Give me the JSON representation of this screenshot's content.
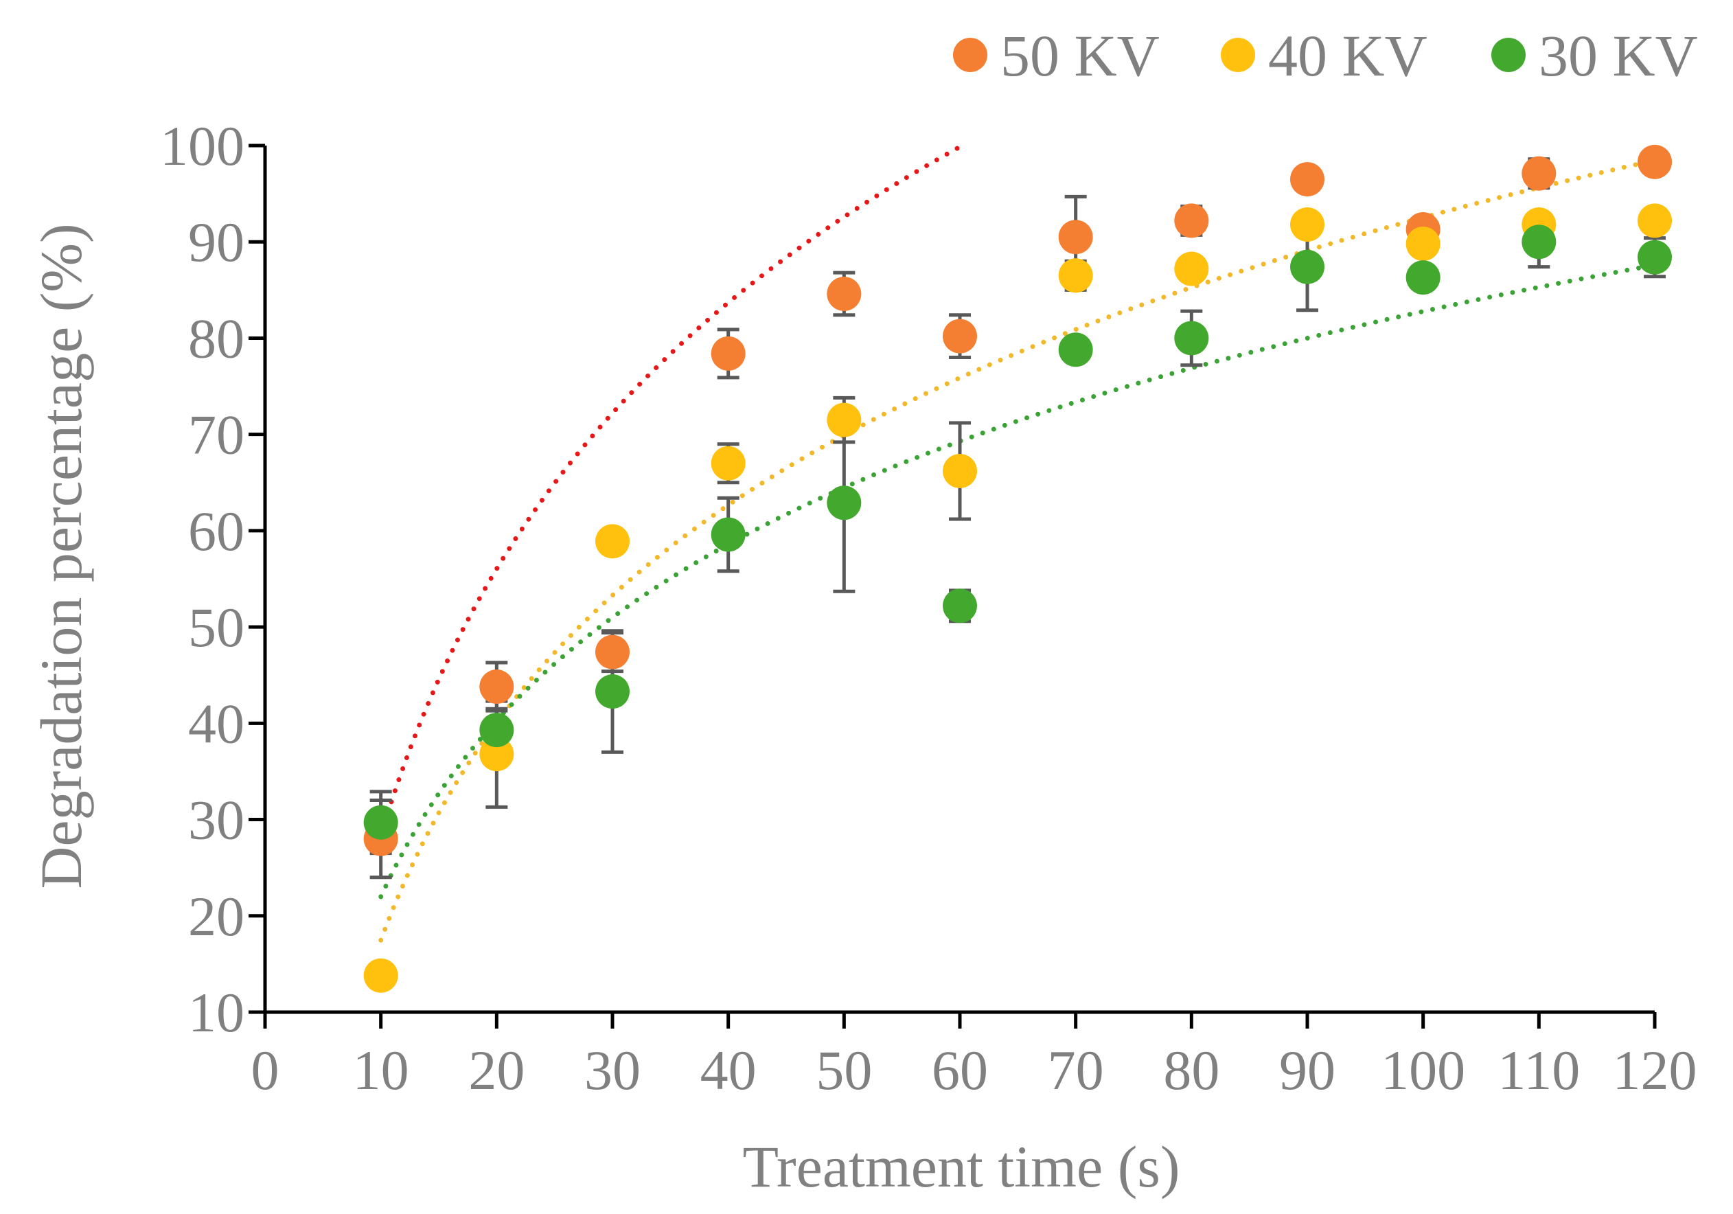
{
  "chart_data": {
    "type": "scatter",
    "title": "",
    "xlabel": "Treatment time (s)",
    "ylabel": "Degradation percentage (%)",
    "xlim": [
      0,
      120
    ],
    "ylim": [
      10,
      100
    ],
    "xticks": [
      0,
      10,
      20,
      30,
      40,
      50,
      60,
      70,
      80,
      90,
      100,
      110,
      120
    ],
    "yticks": [
      10,
      20,
      30,
      40,
      50,
      60,
      70,
      80,
      90,
      100
    ],
    "grid": false,
    "legend_position": "top",
    "x": [
      10,
      20,
      30,
      40,
      50,
      60,
      70,
      80,
      90,
      100,
      110,
      120
    ],
    "series": [
      {
        "name": "50 KV",
        "marker_color": "#F47E31",
        "trend_color": "#E81717",
        "values": [
          28.0,
          43.8,
          47.4,
          78.4,
          84.6,
          80.2,
          90.5,
          92.2,
          96.5,
          91.3,
          97.1,
          98.3
        ],
        "errors": [
          4.0,
          2.5,
          2.0,
          2.5,
          2.2,
          2.2,
          4.2,
          1.5,
          1.0,
          0.6,
          1.5,
          1.0
        ],
        "trend": {
          "type": "log",
          "a": 39.9,
          "b": -63.5
        }
      },
      {
        "name": "40 KV",
        "marker_color": "#FFC10E",
        "trend_color": "#F2B82A",
        "values": [
          13.8,
          36.8,
          58.9,
          67.0,
          71.5,
          66.2,
          86.5,
          87.2,
          91.8,
          89.8,
          91.8,
          92.2
        ],
        "errors": [
          0.8,
          5.5,
          0.8,
          2.0,
          2.3,
          5.0,
          1.5,
          1.0,
          1.0,
          1.2,
          1.0,
          0.8
        ],
        "trend": {
          "type": "log",
          "a": 32.6,
          "b": -57.6
        }
      },
      {
        "name": "30 KV",
        "marker_color": "#43A92E",
        "trend_color": "#3BA335",
        "values": [
          29.7,
          39.3,
          43.3,
          59.6,
          62.9,
          52.2,
          78.8,
          80.0,
          87.4,
          86.3,
          90.0,
          88.4
        ],
        "errors": [
          3.2,
          2.2,
          6.3,
          3.8,
          9.2,
          1.6,
          1.0,
          2.8,
          4.5,
          0.8,
          2.6,
          2.0
        ],
        "trend": {
          "type": "log",
          "a": 26.4,
          "b": -38.8
        }
      }
    ]
  }
}
